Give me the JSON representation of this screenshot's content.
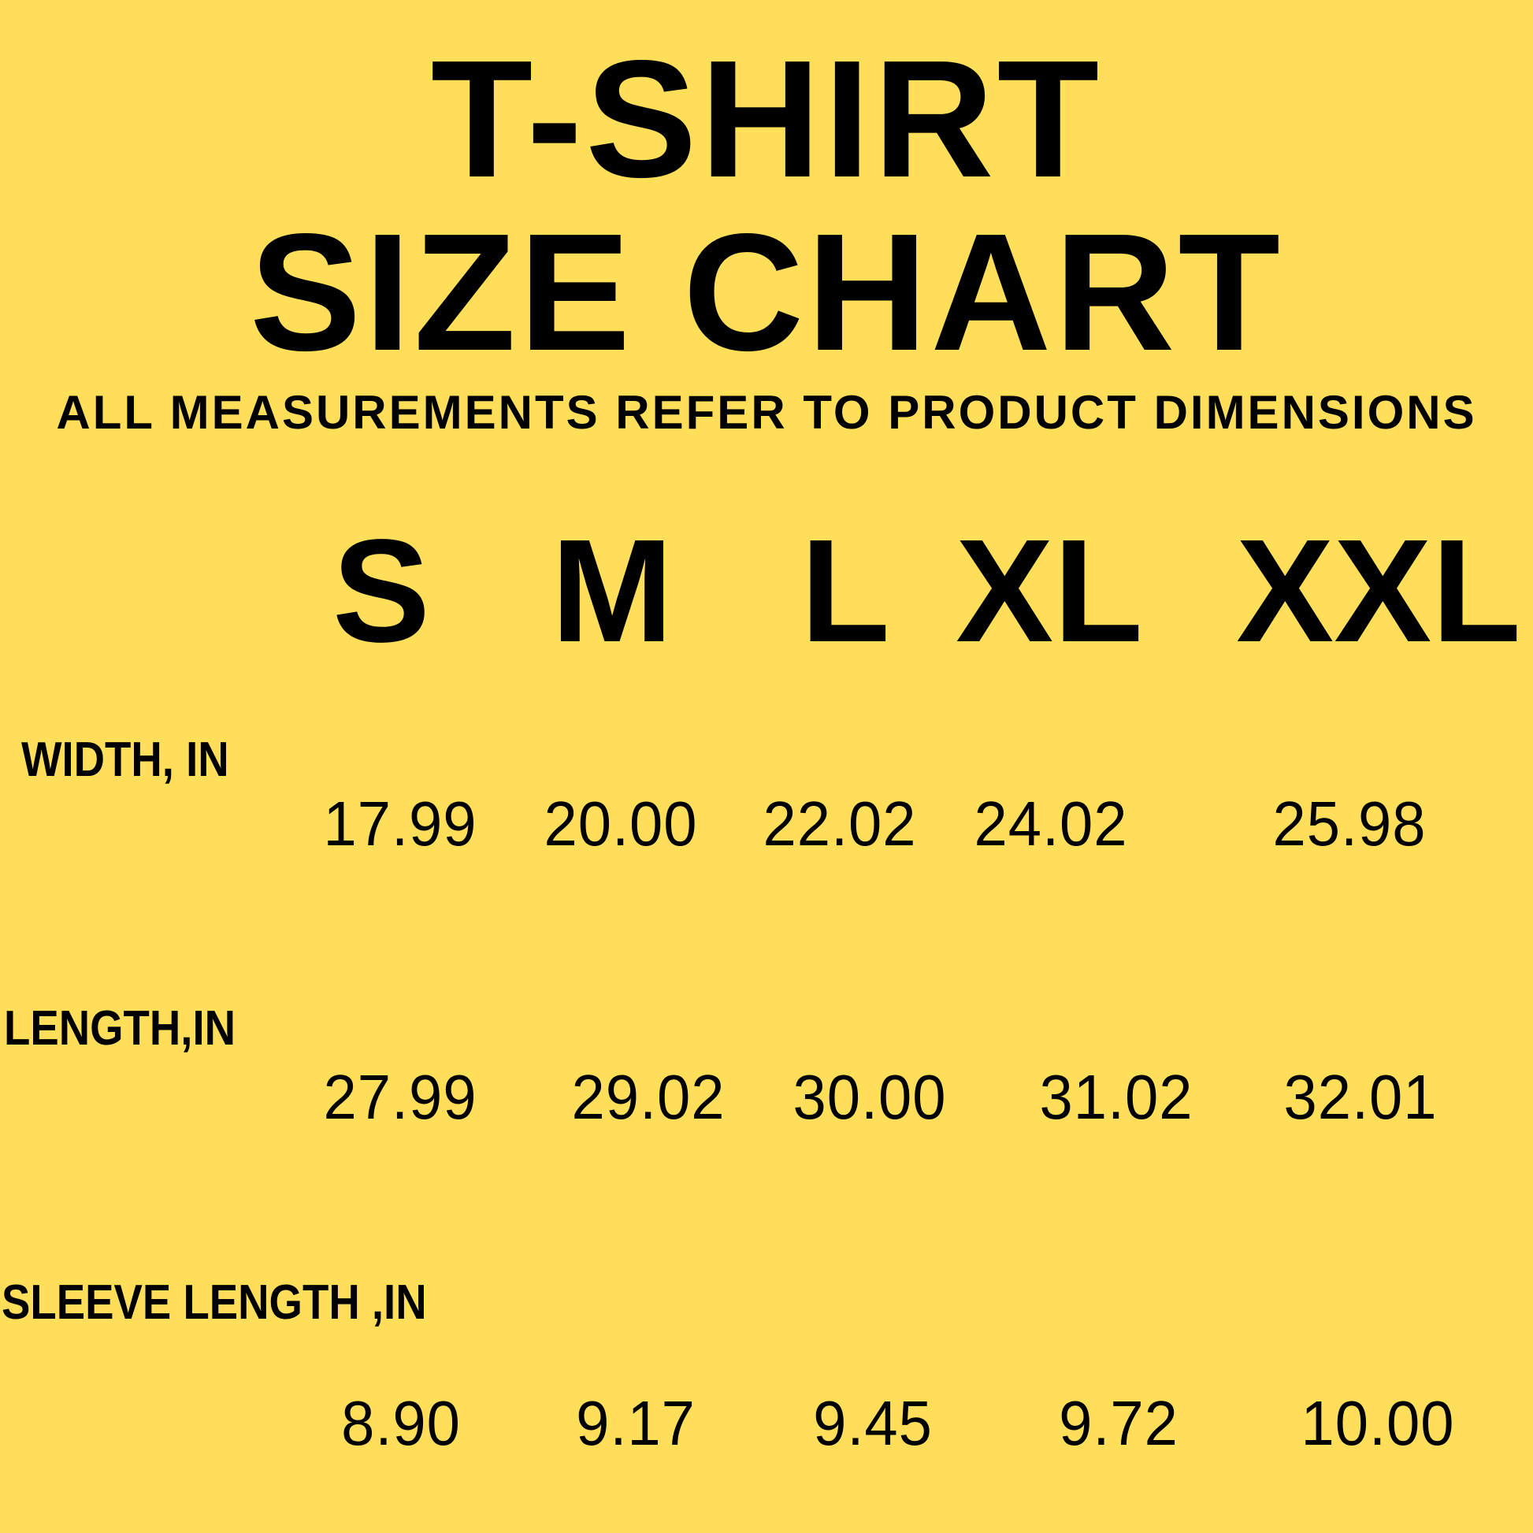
{
  "background_color": "#FFDE59",
  "title_line1": "T-SHIRT",
  "title_line2": "SIZE CHART",
  "subtitle": "ALL MEASUREMENTS REFER TO PRODUCT DIMENSIONS",
  "sizes": [
    "S",
    "M",
    "L",
    "XL",
    "XXL"
  ],
  "rows": [
    {
      "label": "WIDTH, IN",
      "values": [
        "17.99",
        "20.00",
        "22.02",
        "24.02",
        "25.98"
      ]
    },
    {
      "label": "LENGTH,IN",
      "values": [
        "27.99",
        "29.02",
        "30.00",
        "31.02",
        "32.01"
      ]
    },
    {
      "label": "SLEEVE LENGTH ,IN",
      "values": [
        "8.90",
        "9.17",
        "9.45",
        "9.72",
        "10.00"
      ]
    }
  ]
}
